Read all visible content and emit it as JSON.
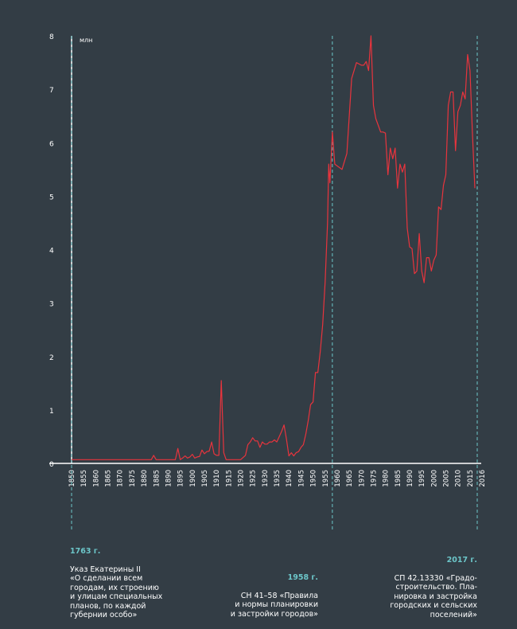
{
  "chart_data": {
    "type": "line",
    "unit_label": "млн",
    "ylim": [
      0,
      8
    ],
    "y_ticks": [
      "0",
      "1",
      "2",
      "3",
      "4",
      "5",
      "6",
      "7",
      "8"
    ],
    "xlim": [
      1850,
      2018
    ],
    "x_ticks": [
      "1850",
      "1855",
      "1860",
      "1865",
      "1870",
      "1875",
      "1880",
      "1885",
      "1890",
      "1895",
      "1900",
      "1905",
      "1910",
      "1915",
      "1920",
      "1925",
      "1930",
      "1935",
      "1940",
      "1945",
      "1950",
      "1955",
      "1960",
      "1965",
      "1970",
      "1975",
      "1980",
      "1985",
      "1990",
      "1995",
      "2000",
      "2005",
      "2010",
      "2015",
      "2016"
    ],
    "line_color": "#e8343d",
    "marker_color": "#6cc6c9",
    "grid": false,
    "series": [
      {
        "x": [
          1850,
          1880,
          1883,
          1884,
          1885,
          1893,
          1894,
          1895,
          1896,
          1897,
          1898,
          1899,
          1900,
          1901,
          1902,
          1903,
          1904,
          1905,
          1906,
          1907,
          1908,
          1909,
          1910,
          1911,
          1912,
          1913,
          1914,
          1915,
          1916,
          1920,
          1922,
          1923,
          1924,
          1925,
          1926,
          1927,
          1928,
          1929,
          1930,
          1931,
          1932,
          1933,
          1934,
          1935,
          1936,
          1937,
          1938,
          1939,
          1940,
          1941,
          1942,
          1943,
          1944,
          1945,
          1946,
          1947,
          1948,
          1949,
          1950,
          1951,
          1952,
          1953,
          1954,
          1955,
          1956,
          1956.5,
          1957,
          1958,
          1959,
          1962,
          1964,
          1966,
          1968,
          1970,
          1971,
          1972,
          1973,
          1974,
          1975,
          1976,
          1978,
          1979,
          1980,
          1981,
          1982,
          1983,
          1984,
          1985,
          1986,
          1987,
          1988,
          1989,
          1990,
          1991,
          1992,
          1993,
          1994,
          1995,
          1996,
          1997,
          1998,
          1999,
          2000,
          2001,
          2002,
          2003,
          2004,
          2005,
          2006,
          2007,
          2008,
          2009,
          2010,
          2011,
          2012,
          2013,
          2014,
          2015,
          2016,
          2017
        ],
        "values": [
          0.07,
          0.07,
          0.07,
          0.15,
          0.07,
          0.07,
          0.28,
          0.07,
          0.1,
          0.14,
          0.1,
          0.12,
          0.17,
          0.1,
          0.12,
          0.13,
          0.25,
          0.18,
          0.22,
          0.23,
          0.4,
          0.18,
          0.15,
          0.15,
          1.55,
          0.2,
          0.07,
          0.07,
          0.07,
          0.07,
          0.15,
          0.35,
          0.4,
          0.48,
          0.42,
          0.42,
          0.3,
          0.4,
          0.36,
          0.36,
          0.4,
          0.4,
          0.44,
          0.4,
          0.5,
          0.6,
          0.72,
          0.45,
          0.14,
          0.2,
          0.14,
          0.2,
          0.22,
          0.3,
          0.35,
          0.55,
          0.8,
          1.1,
          1.15,
          1.7,
          1.7,
          2.1,
          2.6,
          3.4,
          4.5,
          5.6,
          5.25,
          6.2,
          5.6,
          5.5,
          5.8,
          7.2,
          7.5,
          7.45,
          7.45,
          7.52,
          7.35,
          8.0,
          6.7,
          6.45,
          6.2,
          6.2,
          6.18,
          5.4,
          5.9,
          5.7,
          5.9,
          5.15,
          5.6,
          5.45,
          5.6,
          4.4,
          4.05,
          4.02,
          3.55,
          3.6,
          4.3,
          3.6,
          3.38,
          3.85,
          3.85,
          3.6,
          3.8,
          3.9,
          4.8,
          4.75,
          5.2,
          5.4,
          6.7,
          6.95,
          6.95,
          5.85,
          6.58,
          6.7,
          6.95,
          6.82,
          7.65,
          7.35,
          6.2,
          5.15
        ]
      }
    ],
    "annotations": [
      {
        "year_label": "1763 г.",
        "text": "Указ Екатерины II\n«О сделании всем\nгородам, их строению\nи улицам специальных\nпланов, по каждой\nгубернии особо»"
      },
      {
        "year_label": "1958 г.",
        "text": "СН 41–58 «Правила\nи нормы планировки\nи застройки городов»"
      },
      {
        "year_label": "2017 г.",
        "text": "СП 42.13330 «Градо-\nстроительство. Пла-\nнировка и застройка\nгородских и сельских\nпоселений»"
      }
    ],
    "markers_x": [
      1850,
      1958,
      2018
    ]
  }
}
